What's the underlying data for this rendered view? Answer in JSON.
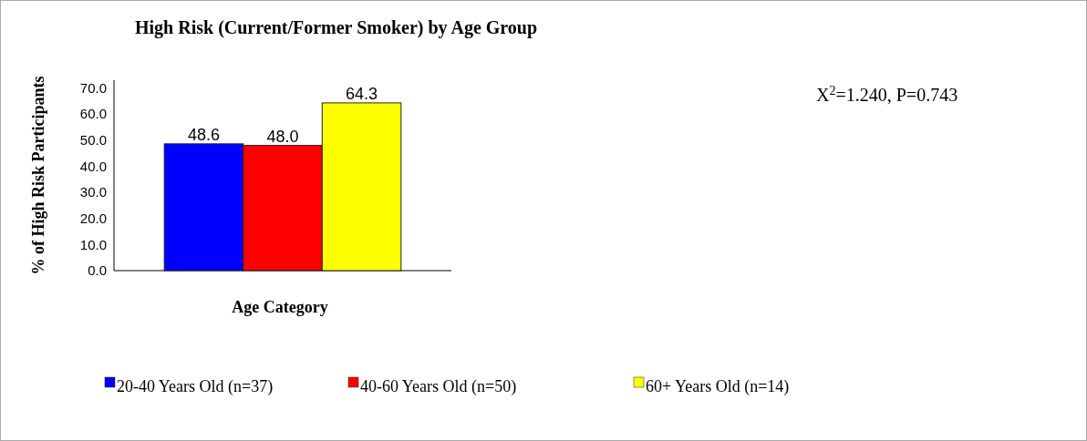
{
  "chart_data": {
    "type": "bar",
    "title": "High Risk (Current/Former Smoker) by Age Group",
    "xlabel": "Age Category",
    "ylabel": "% of High Risk Participants",
    "categories": [
      null
    ],
    "series": [
      {
        "name": "20-40 Years Old (n=37)",
        "color": "#0000ff",
        "values": [
          48.6
        ],
        "value_labels": [
          "48.6"
        ]
      },
      {
        "name": "40-60 Years Old (n=50)",
        "color": "#ff0000",
        "values": [
          48.0
        ],
        "value_labels": [
          "48.0"
        ]
      },
      {
        "name": "60+ Years Old (n=14)",
        "color": "#ffff00",
        "values": [
          64.3
        ],
        "value_labels": [
          "64.3"
        ]
      }
    ],
    "ylim": [
      0,
      73
    ],
    "yticks": [
      {
        "value": 0,
        "label": "0.0"
      },
      {
        "value": 10,
        "label": "10.0"
      },
      {
        "value": 20,
        "label": "20.0"
      },
      {
        "value": 30,
        "label": "30.0"
      },
      {
        "value": 40,
        "label": "40.0"
      },
      {
        "value": 50,
        "label": "50.0"
      },
      {
        "value": 60,
        "label": "60.0"
      },
      {
        "value": 70,
        "label": "70.0"
      }
    ],
    "legend": "bottom",
    "annotations": [
      "X$^{2}$=1.240, P=0.743"
    ]
  }
}
